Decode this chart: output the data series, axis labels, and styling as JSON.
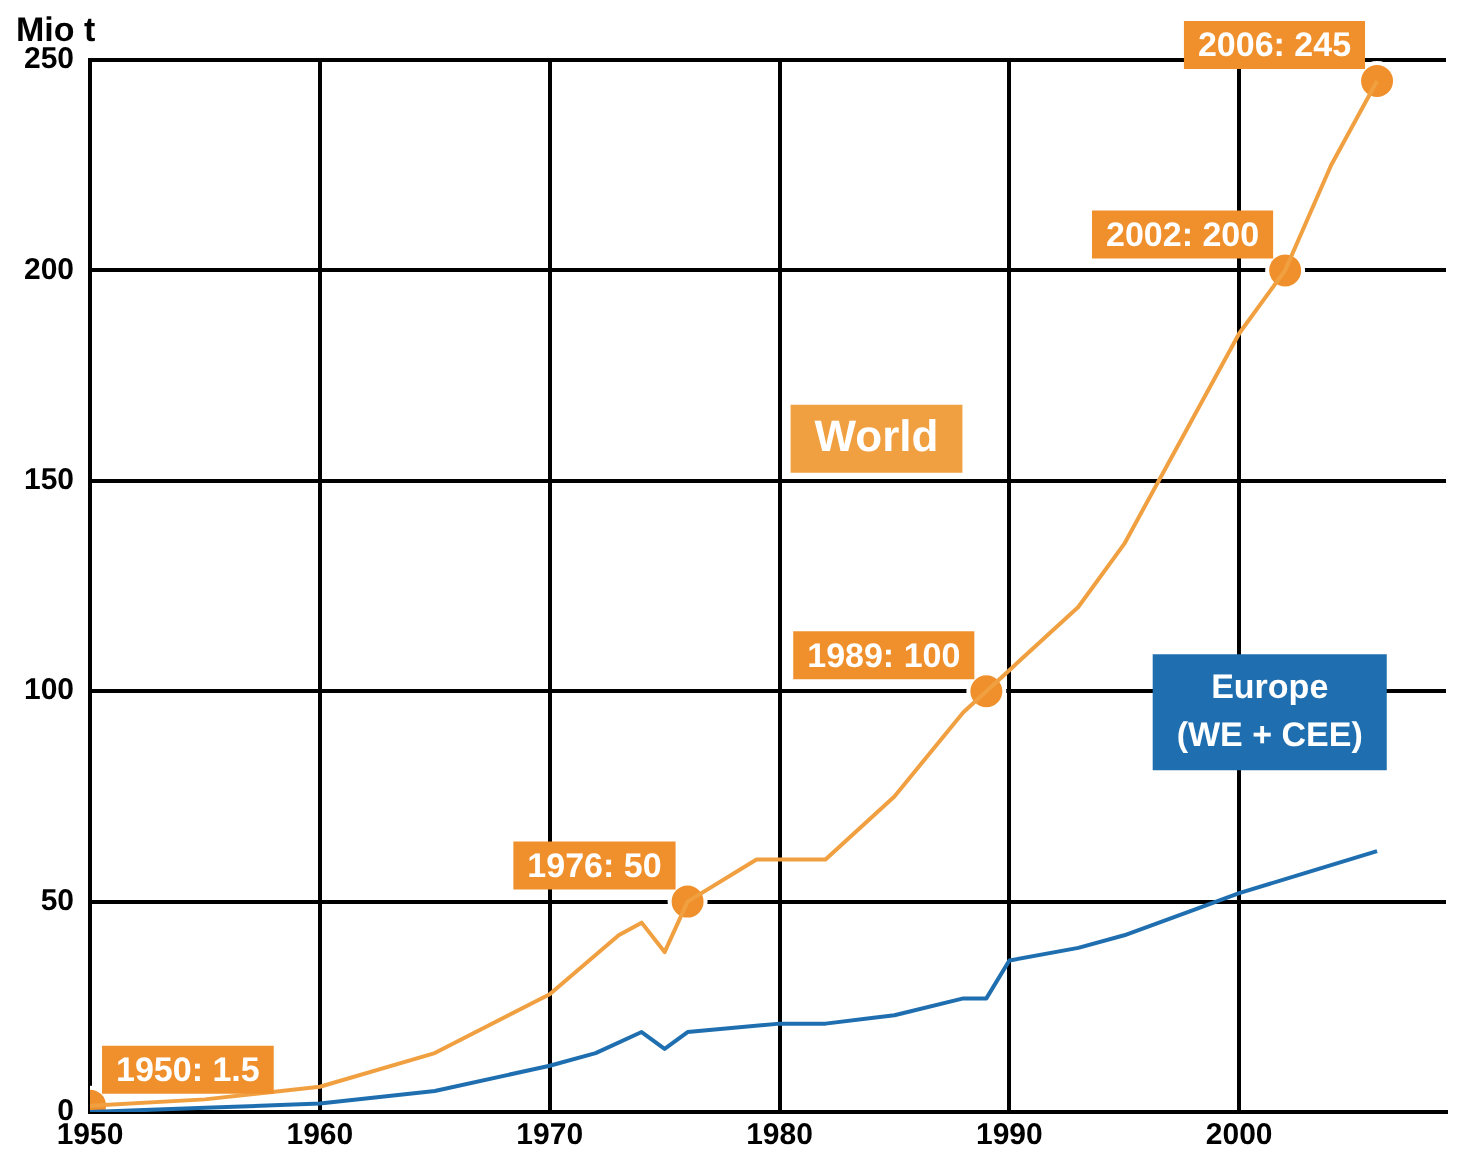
{
  "chart_data": {
    "type": "line",
    "ylabel": "Mio t",
    "xlim": [
      1950,
      2009
    ],
    "xticks": [
      1950,
      1960,
      1970,
      1980,
      1990,
      2000
    ],
    "ylim": [
      0,
      250
    ],
    "yticks": [
      0,
      50,
      100,
      150,
      200,
      250
    ],
    "grid": true,
    "legend": false,
    "marker": "none",
    "series": [
      {
        "name": "World",
        "color": "#f0a040",
        "x": [
          1950,
          1955,
          1960,
          1965,
          1970,
          1973,
          1974,
          1975,
          1976,
          1979,
          1982,
          1985,
          1988,
          1990,
          1993,
          1995,
          1997,
          2000,
          2002,
          2004,
          2006
        ],
        "values": [
          1.5,
          3,
          6,
          14,
          28,
          42,
          45,
          38,
          50,
          60,
          60,
          75,
          95,
          105,
          120,
          135,
          155,
          185,
          200,
          225,
          245
        ]
      },
      {
        "name": "Europe\n(WE + CEE)",
        "color": "#1f6fb0",
        "x": [
          1950,
          1955,
          1960,
          1965,
          1970,
          1972,
          1974,
          1975,
          1976,
          1980,
          1982,
          1985,
          1988,
          1989,
          1990,
          1993,
          1995,
          1998,
          2000,
          2003,
          2006
        ],
        "values": [
          0,
          1,
          2,
          5,
          11,
          14,
          19,
          15,
          19,
          21,
          21,
          23,
          27,
          27,
          36,
          39,
          42,
          48,
          52,
          57,
          62
        ]
      },
      {
        "type": "scatter",
        "marker": "circle",
        "color": "#f0902c",
        "x": [
          1950,
          1976,
          1989,
          2002,
          2006
        ],
        "values": [
          1.5,
          50,
          100,
          200,
          245
        ],
        "value_labels": [
          "1950: 1.5",
          "1976: 50",
          "1989: 100",
          "2002: 200",
          "2006: 245"
        ]
      }
    ]
  }
}
